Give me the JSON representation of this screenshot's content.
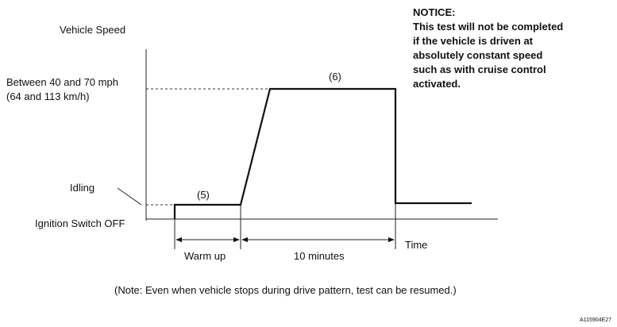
{
  "y_axis_title": "Vehicle Speed",
  "levels": {
    "high_line1": "Between 40 and 70 mph",
    "high_line2": "(64 and 113 km/h)",
    "idling": "Idling",
    "ignition_off": "Ignition Switch OFF"
  },
  "steps": {
    "step5": "(5)",
    "step6": "(6)"
  },
  "intervals": {
    "warm_up": "Warm up",
    "ten_minutes": "10 minutes"
  },
  "x_axis_title": "Time",
  "notice": {
    "heading": "NOTICE:",
    "line1": "This test will not be completed",
    "line2": "if the vehicle is driven at",
    "line3": "absolutely constant speed",
    "line4": "such as with cruise control",
    "line5": "activated."
  },
  "note": "(Note: Even when vehicle stops during drive pattern, test can be resumed.)",
  "figure_code": "A115904E27"
}
